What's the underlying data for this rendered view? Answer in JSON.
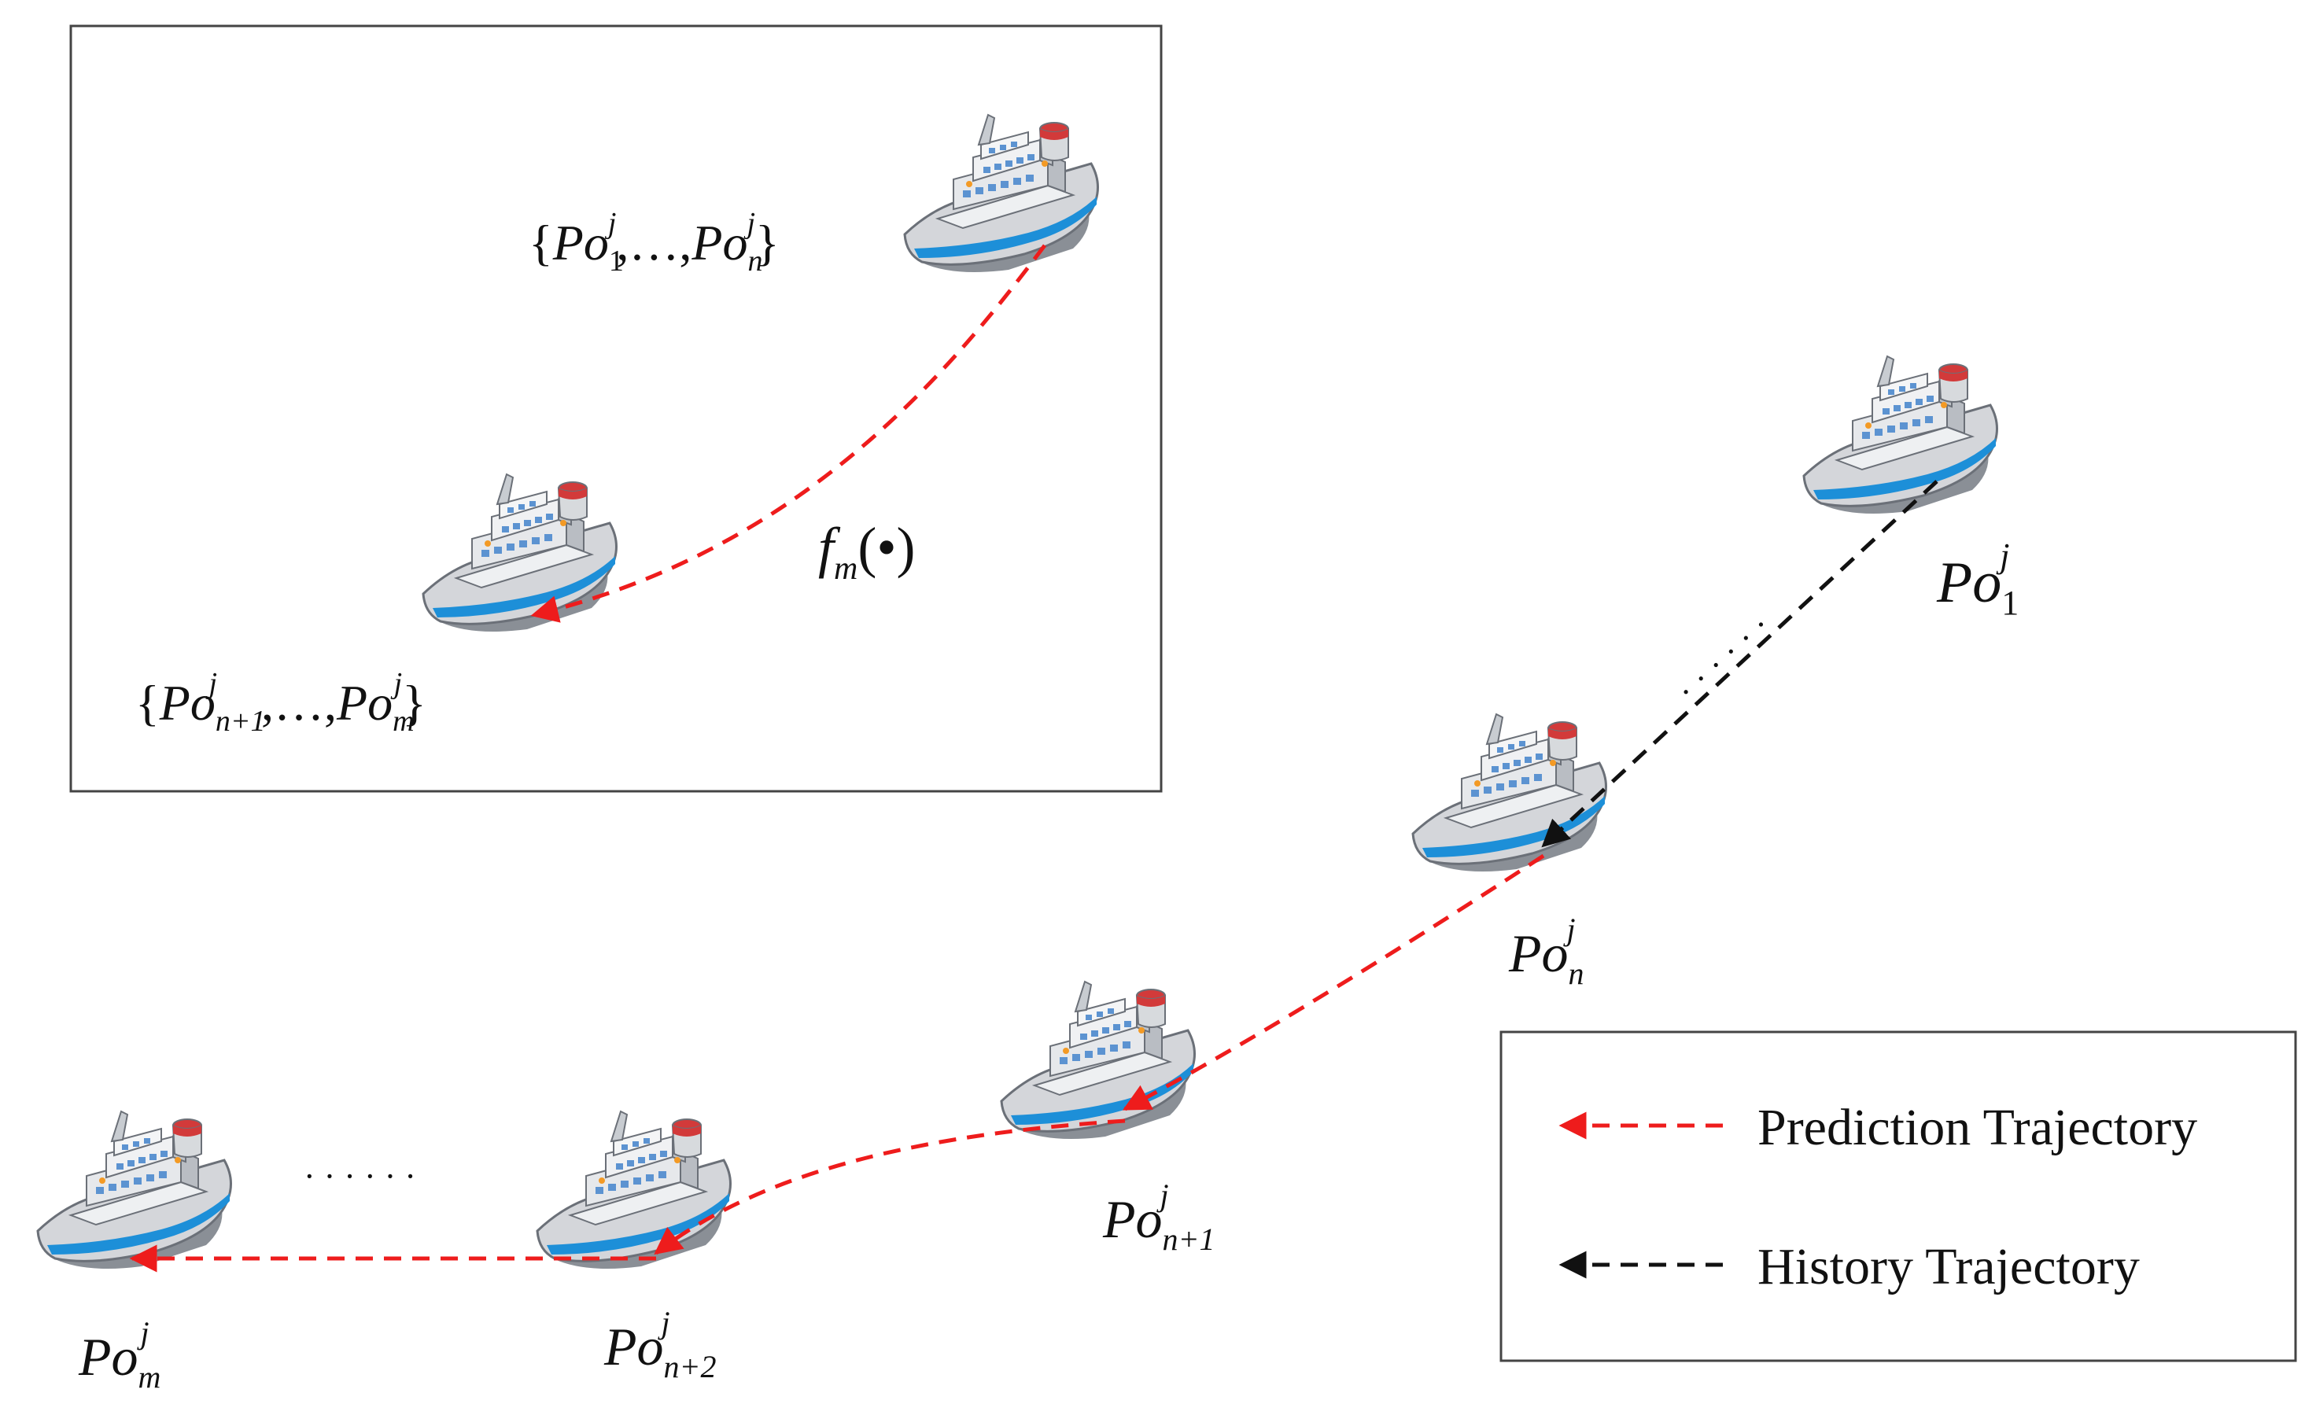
{
  "colors": {
    "prediction": "#ee1c1c",
    "history": "#111111",
    "ship_hull": "#d4d6da",
    "ship_stripe": "#1d8fd8",
    "ship_funnel": "#d23a3a",
    "window": "#5c93d1"
  },
  "inset": {
    "top_label": {
      "open": "{",
      "base1": "Po",
      "sub1": "1",
      "sup1": "j",
      "mid": ",…,",
      "base2": "Po",
      "sub2": "n",
      "sup2": "j",
      "close": "}"
    },
    "bottom_label": {
      "open": "{",
      "base1": "Po",
      "sub1": "n+1",
      "sup1": "j",
      "mid": ",…,",
      "base2": "Po",
      "sub2": "m",
      "sup2": "j",
      "close": "}"
    },
    "function_label": {
      "base": "f",
      "sub": "m",
      "arg": "(•)"
    }
  },
  "points": [
    {
      "base": "Po",
      "sub": "1",
      "sup": "j"
    },
    {
      "base": "Po",
      "sub": "n",
      "sup": "j"
    },
    {
      "base": "Po",
      "sub": "n+1",
      "sup": "j"
    },
    {
      "base": "Po",
      "sub": "n+2",
      "sup": "j"
    },
    {
      "base": "Po",
      "sub": "m",
      "sup": "j"
    }
  ],
  "ellipsis_dots": "· · · · · ·",
  "legend": {
    "prediction_label": "Prediction Trajectory",
    "history_label": "History Trajectory"
  }
}
